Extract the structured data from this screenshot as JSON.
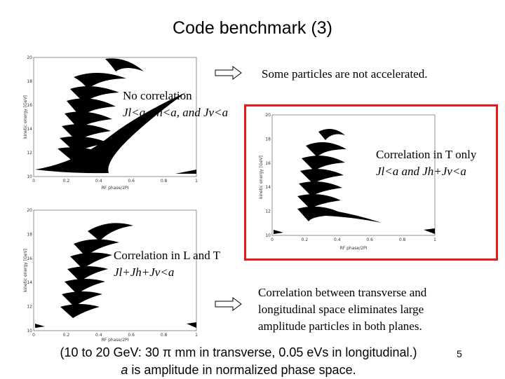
{
  "title": "Code benchmark (3)",
  "notes": {
    "top_right": "Some particles are not accelerated.",
    "no_corr_title": "No correlation",
    "no_corr_formula": "Jl<a, Jh<a, and Jv<a",
    "corr_t_title": "Correlation in T only",
    "corr_t_formula": "Jl<a and Jh+Jv<a",
    "corr_lt_title": "Correlation in L and T",
    "corr_lt_formula": "Jl+Jh+Jv<a",
    "bottom_right_1": "Correlation between transverse and",
    "bottom_right_2": "longitudinal space eliminates large",
    "bottom_right_3": "amplitude particles in both planes."
  },
  "footer": {
    "line1": "(10 to 20 GeV: 30 π mm in transverse, 0.05 eVs in longitudinal.)",
    "line2_italic": "a",
    "line2_rest": " is amplitude in normalized phase space."
  },
  "page_number": "5",
  "plots": {
    "ylabel": "kinetic energy [GeV]",
    "xlabel": "RF phase/2PI",
    "yticks": [
      "10",
      "12",
      "14",
      "16",
      "18",
      "20"
    ],
    "xticks": [
      "0",
      "0.2",
      "0.4",
      "0.6",
      "0.8",
      "1"
    ]
  },
  "colors": {
    "highlight_box": "#e8191a",
    "particles": "#000000"
  }
}
